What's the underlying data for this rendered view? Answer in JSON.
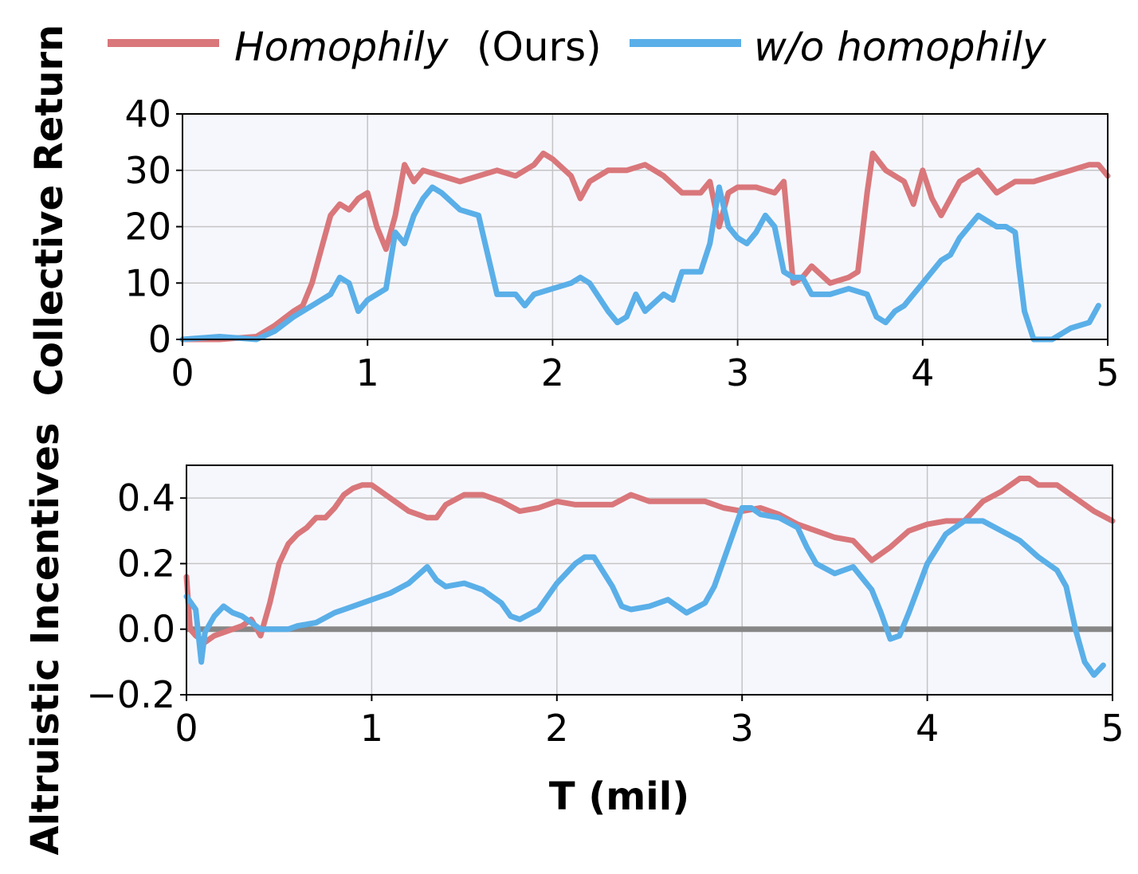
{
  "legend": {
    "series_a_name": "Homophily",
    "series_a_suffix": "(Ours)",
    "series_b_name": "w/o homophily"
  },
  "colors": {
    "homophily": "#d9777b",
    "without_homophily": "#5aafe8",
    "zero_line": "#878787",
    "plot_background": "#f6f7fd",
    "grid": "#c4c4c4"
  },
  "chart_data": [
    {
      "type": "line",
      "xlabel": "",
      "ylabel": "Collective Return",
      "xlim": [
        0,
        5
      ],
      "ylim": [
        0,
        40
      ],
      "xticks": [
        "0",
        "1",
        "2",
        "3",
        "4",
        "5"
      ],
      "yticks": [
        "0",
        "10",
        "20",
        "30",
        "40"
      ],
      "grid": true,
      "series": [
        {
          "name": "Homophily (Ours)",
          "x": [
            0,
            0.2,
            0.4,
            0.5,
            0.6,
            0.65,
            0.7,
            0.75,
            0.8,
            0.85,
            0.9,
            0.95,
            1.0,
            1.05,
            1.1,
            1.15,
            1.2,
            1.25,
            1.3,
            1.4,
            1.5,
            1.6,
            1.7,
            1.8,
            1.9,
            1.95,
            2.0,
            2.1,
            2.15,
            2.2,
            2.3,
            2.4,
            2.5,
            2.6,
            2.7,
            2.8,
            2.85,
            2.9,
            2.95,
            3.0,
            3.1,
            3.2,
            3.25,
            3.3,
            3.35,
            3.4,
            3.5,
            3.6,
            3.65,
            3.7,
            3.73,
            3.8,
            3.9,
            3.95,
            4.0,
            4.05,
            4.1,
            4.2,
            4.3,
            4.35,
            4.4,
            4.5,
            4.6,
            4.7,
            4.8,
            4.9,
            4.95,
            5.0
          ],
          "y": [
            0,
            0,
            0.5,
            2.5,
            5,
            6,
            10,
            16,
            22,
            24,
            23,
            25,
            26,
            20,
            16,
            22,
            31,
            28,
            30,
            29,
            28,
            29,
            30,
            29,
            31,
            33,
            32,
            29,
            25,
            28,
            30,
            30,
            31,
            29,
            26,
            26,
            28,
            20,
            26,
            27,
            27,
            26,
            28,
            10,
            11,
            13,
            10,
            11,
            12,
            26,
            33,
            30,
            28,
            24,
            30,
            25,
            22,
            28,
            30,
            28,
            26,
            28,
            28,
            29,
            30,
            31,
            31,
            29
          ]
        },
        {
          "name": "w/o homophily",
          "x": [
            0,
            0.2,
            0.4,
            0.5,
            0.6,
            0.7,
            0.8,
            0.85,
            0.9,
            0.95,
            1.0,
            1.1,
            1.15,
            1.2,
            1.25,
            1.3,
            1.35,
            1.4,
            1.5,
            1.6,
            1.65,
            1.7,
            1.8,
            1.85,
            1.9,
            2.0,
            2.1,
            2.15,
            2.2,
            2.3,
            2.35,
            2.4,
            2.45,
            2.5,
            2.6,
            2.65,
            2.7,
            2.8,
            2.85,
            2.9,
            2.95,
            3.0,
            3.05,
            3.1,
            3.15,
            3.2,
            3.25,
            3.3,
            3.35,
            3.4,
            3.5,
            3.6,
            3.7,
            3.75,
            3.8,
            3.85,
            3.9,
            4.0,
            4.1,
            4.15,
            4.2,
            4.3,
            4.4,
            4.45,
            4.5,
            4.52,
            4.55,
            4.6,
            4.7,
            4.8,
            4.9,
            4.95
          ],
          "y": [
            0,
            0.5,
            0,
            1.5,
            4,
            6,
            8,
            11,
            10,
            5,
            7,
            9,
            19,
            17,
            22,
            25,
            27,
            26,
            23,
            22,
            15,
            8,
            8,
            6,
            8,
            9,
            10,
            11,
            10,
            5,
            3,
            4,
            8,
            5,
            8,
            7,
            12,
            12,
            17,
            27,
            20,
            18,
            17,
            19,
            22,
            20,
            12,
            11,
            11,
            8,
            8,
            9,
            8,
            4,
            3,
            5,
            6,
            10,
            14,
            15,
            18,
            22,
            20,
            20,
            19,
            13,
            5,
            0,
            0,
            2,
            3,
            6
          ]
        }
      ]
    },
    {
      "type": "line",
      "xlabel": "T (mil)",
      "ylabel": "Altruistic Incentives",
      "xlim": [
        0,
        5
      ],
      "ylim": [
        -0.2,
        0.5
      ],
      "xticks": [
        "0",
        "1",
        "2",
        "3",
        "4",
        "5"
      ],
      "yticks": [
        "−0.2",
        "0.0",
        "0.2",
        "0.4"
      ],
      "grid": true,
      "reference_line_y": 0.0,
      "series": [
        {
          "name": "Homophily (Ours)",
          "x": [
            0,
            0.02,
            0.05,
            0.1,
            0.15,
            0.2,
            0.25,
            0.3,
            0.35,
            0.4,
            0.45,
            0.5,
            0.55,
            0.6,
            0.65,
            0.7,
            0.75,
            0.8,
            0.85,
            0.9,
            0.95,
            1.0,
            1.05,
            1.1,
            1.2,
            1.3,
            1.35,
            1.4,
            1.5,
            1.6,
            1.7,
            1.8,
            1.9,
            2.0,
            2.1,
            2.2,
            2.3,
            2.4,
            2.5,
            2.6,
            2.7,
            2.8,
            2.9,
            3.0,
            3.1,
            3.2,
            3.3,
            3.4,
            3.5,
            3.6,
            3.7,
            3.8,
            3.9,
            4.0,
            4.1,
            4.2,
            4.3,
            4.4,
            4.5,
            4.55,
            4.6,
            4.7,
            4.8,
            4.9,
            5.0
          ],
          "y": [
            0.16,
            0.0,
            -0.02,
            -0.04,
            -0.02,
            -0.01,
            0.0,
            0.01,
            0.03,
            -0.02,
            0.08,
            0.2,
            0.26,
            0.29,
            0.31,
            0.34,
            0.34,
            0.37,
            0.41,
            0.43,
            0.44,
            0.44,
            0.42,
            0.4,
            0.36,
            0.34,
            0.34,
            0.38,
            0.41,
            0.41,
            0.39,
            0.36,
            0.37,
            0.39,
            0.38,
            0.38,
            0.38,
            0.41,
            0.39,
            0.39,
            0.39,
            0.39,
            0.37,
            0.36,
            0.37,
            0.35,
            0.32,
            0.3,
            0.28,
            0.27,
            0.21,
            0.25,
            0.3,
            0.32,
            0.33,
            0.33,
            0.39,
            0.42,
            0.46,
            0.46,
            0.44,
            0.44,
            0.4,
            0.36,
            0.33
          ]
        },
        {
          "name": "w/o homophily",
          "x": [
            0,
            0.05,
            0.08,
            0.1,
            0.15,
            0.2,
            0.25,
            0.3,
            0.35,
            0.4,
            0.45,
            0.5,
            0.55,
            0.6,
            0.7,
            0.8,
            0.9,
            1.0,
            1.1,
            1.2,
            1.3,
            1.35,
            1.4,
            1.5,
            1.6,
            1.7,
            1.75,
            1.8,
            1.9,
            2.0,
            2.1,
            2.15,
            2.2,
            2.3,
            2.35,
            2.4,
            2.5,
            2.6,
            2.7,
            2.8,
            2.85,
            2.9,
            3.0,
            3.05,
            3.1,
            3.2,
            3.3,
            3.35,
            3.4,
            3.5,
            3.6,
            3.7,
            3.75,
            3.8,
            3.85,
            3.9,
            4.0,
            4.1,
            4.2,
            4.3,
            4.4,
            4.5,
            4.6,
            4.7,
            4.75,
            4.8,
            4.85,
            4.9,
            4.95
          ],
          "y": [
            0.1,
            0.06,
            -0.1,
            -0.01,
            0.04,
            0.07,
            0.05,
            0.04,
            0.02,
            0.0,
            0.0,
            0.0,
            0.0,
            0.01,
            0.02,
            0.05,
            0.07,
            0.09,
            0.11,
            0.14,
            0.19,
            0.15,
            0.13,
            0.14,
            0.12,
            0.08,
            0.04,
            0.03,
            0.06,
            0.14,
            0.2,
            0.22,
            0.22,
            0.13,
            0.07,
            0.06,
            0.07,
            0.09,
            0.05,
            0.08,
            0.13,
            0.21,
            0.37,
            0.37,
            0.35,
            0.34,
            0.31,
            0.25,
            0.2,
            0.17,
            0.19,
            0.12,
            0.05,
            -0.03,
            -0.02,
            0.05,
            0.2,
            0.29,
            0.33,
            0.33,
            0.3,
            0.27,
            0.22,
            0.18,
            0.13,
            0.0,
            -0.1,
            -0.14,
            -0.11
          ]
        }
      ]
    }
  ]
}
